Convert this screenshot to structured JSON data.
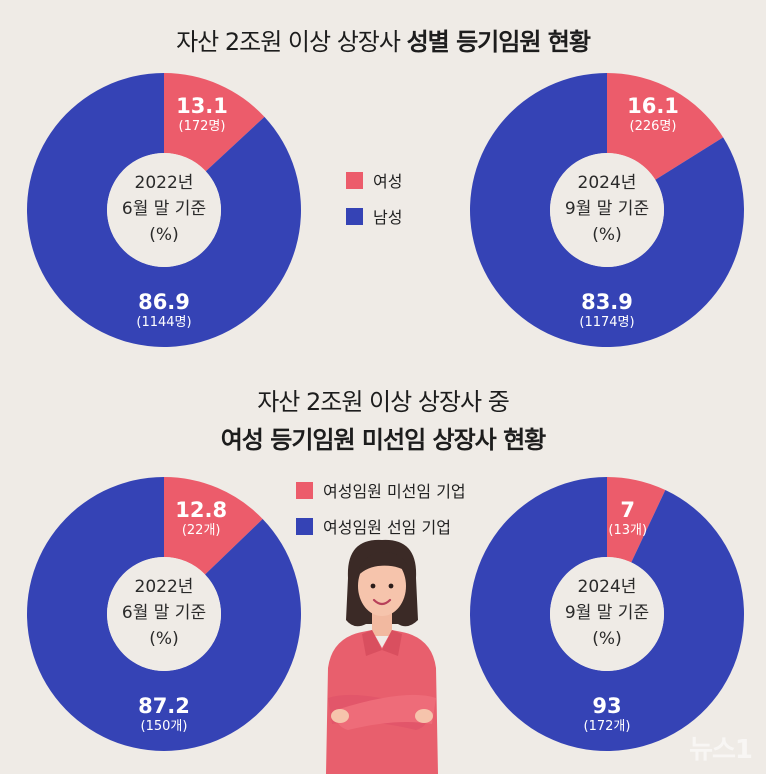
{
  "titles": {
    "top_normal": "자산 2조원 이상 상장사 ",
    "top_bold": "성별 등기임원 현황",
    "bottom_line1": "자산 2조원 이상 상장사 중",
    "bottom_line2": "여성 등기임원 미선임 상장사 현황"
  },
  "colors": {
    "pink": "#ec5c6b",
    "blue": "#3543b5",
    "center": "#efebe6",
    "ring_bg": "#ffffff"
  },
  "legend_top": {
    "items": [
      "여성",
      "남성"
    ]
  },
  "legend_bottom": {
    "items": [
      "여성임원 미선임 기업",
      "여성임원 선임 기업"
    ]
  },
  "chart_data": [
    {
      "type": "pie",
      "center_label": [
        "2022년",
        "6월 말 기준",
        "(%)"
      ],
      "slices": [
        {
          "name": "여성",
          "value": 13.1,
          "value_label": "13.1",
          "count_label": "(172명)"
        },
        {
          "name": "남성",
          "value": 86.9,
          "value_label": "86.9",
          "count_label": "(1144명)"
        }
      ]
    },
    {
      "type": "pie",
      "center_label": [
        "2024년",
        "9월 말 기준",
        "(%)"
      ],
      "slices": [
        {
          "name": "여성",
          "value": 16.1,
          "value_label": "16.1",
          "count_label": "(226명)"
        },
        {
          "name": "남성",
          "value": 83.9,
          "value_label": "83.9",
          "count_label": "(1174명)"
        }
      ]
    },
    {
      "type": "pie",
      "center_label": [
        "2022년",
        "6월 말 기준",
        "(%)"
      ],
      "slices": [
        {
          "name": "여성임원 미선임 기업",
          "value": 12.8,
          "value_label": "12.8",
          "count_label": "(22개)"
        },
        {
          "name": "여성임원 선임 기업",
          "value": 87.2,
          "value_label": "87.2",
          "count_label": "(150개)"
        }
      ]
    },
    {
      "type": "pie",
      "center_label": [
        "2024년",
        "9월 말 기준",
        "(%)"
      ],
      "slices": [
        {
          "name": "여성임원 미선임 기업",
          "value": 7,
          "value_label": "7",
          "count_label": "(13개)"
        },
        {
          "name": "여성임원 선임 기업",
          "value": 93,
          "value_label": "93",
          "count_label": "(172개)"
        }
      ]
    }
  ],
  "watermark": "뉴스1"
}
